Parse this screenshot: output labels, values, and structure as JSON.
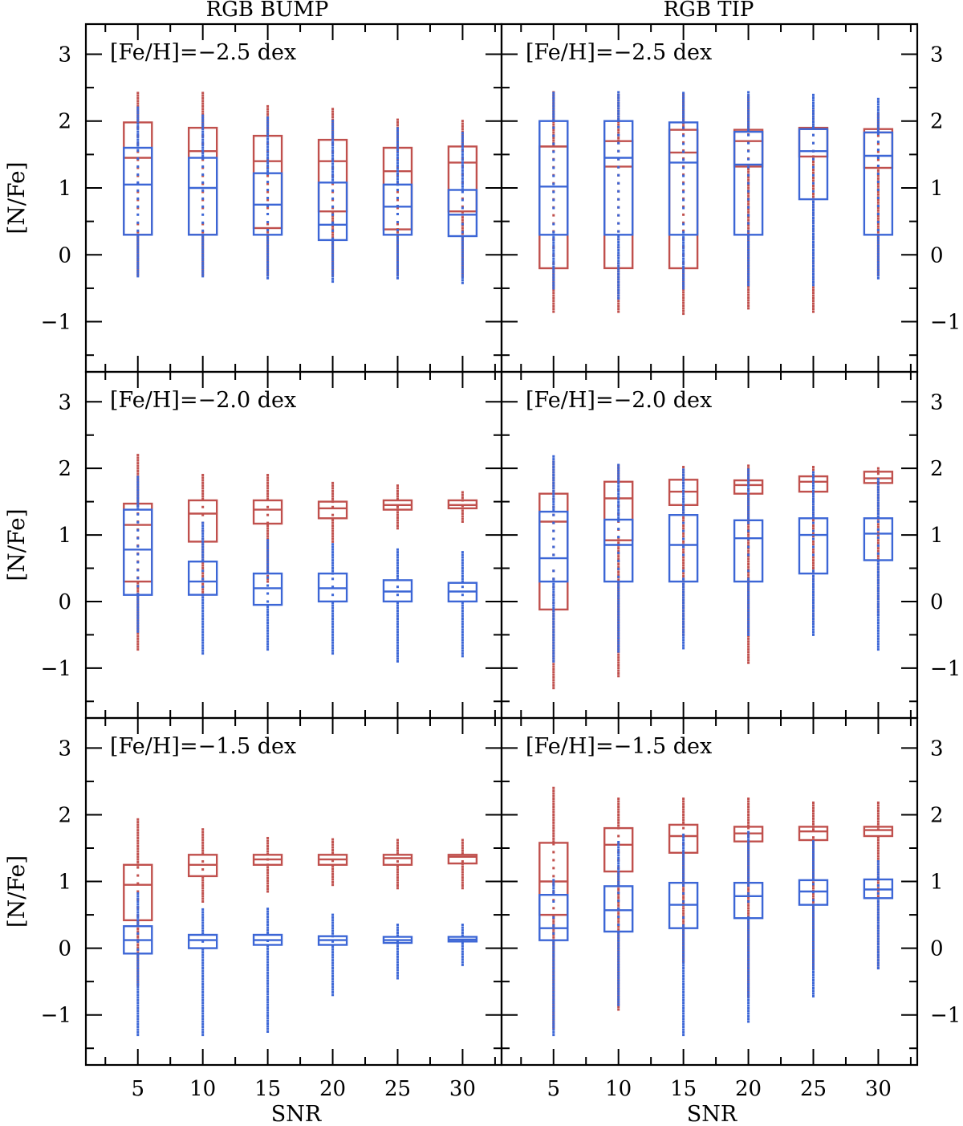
{
  "colors": {
    "red": "#c0504d",
    "blue": "#3c66d6",
    "axis": "#000000"
  },
  "chart_data": {
    "type": "box",
    "column_titles": [
      "RGB BUMP",
      "RGB TIP"
    ],
    "xlabel": "SNR",
    "ylabel": "[N/Fe]",
    "x": [
      5,
      10,
      15,
      20,
      25,
      30
    ],
    "xlim": [
      1,
      33
    ],
    "ylim": [
      -1.75,
      3.45
    ],
    "yticks": [
      -1,
      0,
      1,
      2,
      3
    ],
    "ytick_labels": [
      "−1",
      "0",
      "1",
      "2",
      "3"
    ],
    "xtick_labels": [
      "5",
      "10",
      "15",
      "20",
      "25",
      "30"
    ],
    "panels": [
      {
        "id": "bump-m25",
        "row": 0,
        "col": 0,
        "label": "[Fe/H]=−2.5 dex",
        "series": [
          {
            "name": "red",
            "boxes": [
              [
                0.3,
                1.45,
                1.98
              ],
              [
                0.3,
                1.55,
                1.9
              ],
              [
                0.4,
                1.4,
                1.78
              ],
              [
                0.65,
                1.4,
                1.72
              ],
              [
                0.38,
                1.25,
                1.6
              ],
              [
                0.65,
                1.38,
                1.62
              ]
            ],
            "whiskers": [
              [
                -0.3,
                2.45
              ],
              [
                -0.3,
                2.42
              ],
              [
                -0.3,
                2.25
              ],
              [
                -0.3,
                2.2
              ],
              [
                -0.3,
                2.05
              ],
              [
                -0.32,
                2.0
              ]
            ]
          },
          {
            "name": "blue",
            "boxes": [
              [
                0.3,
                1.05,
                1.6
              ],
              [
                0.3,
                1.0,
                1.45
              ],
              [
                0.3,
                0.75,
                1.22
              ],
              [
                0.22,
                0.45,
                1.08
              ],
              [
                0.3,
                0.72,
                1.05
              ],
              [
                0.28,
                0.6,
                0.97
              ]
            ],
            "whiskers": [
              [
                -0.32,
                2.2
              ],
              [
                -0.32,
                2.1
              ],
              [
                -0.35,
                2.05
              ],
              [
                -0.4,
                2.0
              ],
              [
                -0.35,
                1.9
              ],
              [
                -0.42,
                1.85
              ]
            ]
          }
        ]
      },
      {
        "id": "tip-m25",
        "row": 0,
        "col": 1,
        "label": "[Fe/H]=−2.5 dex",
        "series": [
          {
            "name": "red",
            "boxes": [
              [
                -0.2,
                1.62,
                1.62
              ],
              [
                -0.2,
                1.32,
                1.7
              ],
              [
                -0.2,
                1.53,
                1.87
              ],
              [
                1.32,
                1.7,
                1.87
              ],
              [
                1.47,
                1.88,
                1.9
              ],
              [
                1.3,
                1.83,
                1.88
              ]
            ],
            "whiskers": [
              [
                -0.85,
                2.45
              ],
              [
                -0.85,
                2.42
              ],
              [
                -0.88,
                2.4
              ],
              [
                -0.8,
                2.38
              ],
              [
                -0.85,
                2.2
              ],
              [
                -0.3,
                2.1
              ]
            ]
          },
          {
            "name": "blue",
            "boxes": [
              [
                0.3,
                1.02,
                2.0
              ],
              [
                0.3,
                1.45,
                2.0
              ],
              [
                0.3,
                1.38,
                1.98
              ],
              [
                0.3,
                1.35,
                1.84
              ],
              [
                0.83,
                1.55,
                1.88
              ],
              [
                0.3,
                1.48,
                1.83
              ]
            ],
            "whiskers": [
              [
                -0.5,
                2.45
              ],
              [
                -0.65,
                2.45
              ],
              [
                -0.5,
                2.45
              ],
              [
                -0.45,
                2.45
              ],
              [
                -0.45,
                2.42
              ],
              [
                -0.35,
                2.35
              ]
            ]
          }
        ]
      },
      {
        "id": "bump-m20",
        "row": 1,
        "col": 0,
        "label": "[Fe/H]=−2.0 dex",
        "series": [
          {
            "name": "red",
            "boxes": [
              [
                0.3,
                1.15,
                1.47
              ],
              [
                0.9,
                1.32,
                1.52
              ],
              [
                1.17,
                1.38,
                1.52
              ],
              [
                1.25,
                1.4,
                1.5
              ],
              [
                1.38,
                1.45,
                1.52
              ],
              [
                1.4,
                1.45,
                1.52
              ]
            ],
            "whiskers": [
              [
                -0.72,
                2.22
              ],
              [
                0.1,
                1.9
              ],
              [
                0.3,
                1.92
              ],
              [
                0.9,
                1.78
              ],
              [
                1.1,
                1.75
              ],
              [
                1.2,
                1.65
              ]
            ]
          },
          {
            "name": "blue",
            "boxes": [
              [
                0.1,
                0.78,
                1.38
              ],
              [
                0.1,
                0.3,
                0.6
              ],
              [
                -0.05,
                0.2,
                0.42
              ],
              [
                0.0,
                0.2,
                0.42
              ],
              [
                0.0,
                0.15,
                0.32
              ],
              [
                0.0,
                0.15,
                0.28
              ]
            ],
            "whiskers": [
              [
                -0.45,
                1.88
              ],
              [
                -0.78,
                1.2
              ],
              [
                -0.72,
                0.95
              ],
              [
                -0.78,
                0.88
              ],
              [
                -0.9,
                0.8
              ],
              [
                -0.82,
                0.75
              ]
            ]
          }
        ]
      },
      {
        "id": "tip-m20",
        "row": 1,
        "col": 1,
        "label": "[Fe/H]=−2.0 dex",
        "series": [
          {
            "name": "red",
            "boxes": [
              [
                -0.12,
                1.2,
                1.62
              ],
              [
                0.92,
                1.55,
                1.8
              ],
              [
                1.45,
                1.65,
                1.83
              ],
              [
                1.62,
                1.75,
                1.82
              ],
              [
                1.65,
                1.8,
                1.88
              ],
              [
                1.78,
                1.85,
                1.95
              ]
            ],
            "whiskers": [
              [
                -1.3,
                2.1
              ],
              [
                -1.12,
                2.05
              ],
              [
                -0.5,
                2.05
              ],
              [
                -0.92,
                2.05
              ],
              [
                -0.3,
                2.05
              ],
              [
                -0.2,
                2.0
              ]
            ]
          },
          {
            "name": "blue",
            "boxes": [
              [
                0.3,
                0.65,
                1.35
              ],
              [
                0.3,
                0.85,
                1.23
              ],
              [
                0.3,
                0.85,
                1.3
              ],
              [
                0.3,
                0.95,
                1.22
              ],
              [
                0.42,
                1.0,
                1.25
              ],
              [
                0.62,
                1.02,
                1.25
              ]
            ],
            "whiskers": [
              [
                -0.9,
                2.2
              ],
              [
                -0.75,
                2.05
              ],
              [
                -0.7,
                2.0
              ],
              [
                -0.5,
                2.0
              ],
              [
                -0.5,
                1.95
              ],
              [
                -0.72,
                1.85
              ]
            ]
          }
        ]
      },
      {
        "id": "bump-m15",
        "row": 2,
        "col": 0,
        "label": "[Fe/H]=−1.5 dex",
        "series": [
          {
            "name": "red",
            "boxes": [
              [
                0.42,
                0.95,
                1.25
              ],
              [
                1.08,
                1.25,
                1.4
              ],
              [
                1.25,
                1.33,
                1.4
              ],
              [
                1.25,
                1.33,
                1.4
              ],
              [
                1.25,
                1.35,
                1.4
              ],
              [
                1.27,
                1.37,
                1.4
              ]
            ],
            "whiskers": [
              [
                -0.55,
                1.95
              ],
              [
                0.7,
                1.78
              ],
              [
                0.85,
                1.65
              ],
              [
                0.95,
                1.65
              ],
              [
                0.9,
                1.62
              ],
              [
                0.9,
                1.62
              ]
            ]
          },
          {
            "name": "blue",
            "boxes": [
              [
                -0.08,
                0.12,
                0.33
              ],
              [
                0.0,
                0.12,
                0.2
              ],
              [
                0.05,
                0.12,
                0.2
              ],
              [
                0.05,
                0.12,
                0.18
              ],
              [
                0.08,
                0.12,
                0.17
              ],
              [
                0.1,
                0.13,
                0.17
              ]
            ],
            "whiskers": [
              [
                -1.3,
                0.85
              ],
              [
                -1.3,
                0.58
              ],
              [
                -1.25,
                0.6
              ],
              [
                -0.7,
                0.5
              ],
              [
                -0.45,
                0.38
              ],
              [
                -0.25,
                0.38
              ]
            ]
          }
        ]
      },
      {
        "id": "tip-m15",
        "row": 2,
        "col": 1,
        "label": "[Fe/H]=−1.5 dex",
        "series": [
          {
            "name": "red",
            "boxes": [
              [
                0.5,
                1.0,
                1.58
              ],
              [
                1.15,
                1.55,
                1.8
              ],
              [
                1.43,
                1.68,
                1.85
              ],
              [
                1.6,
                1.72,
                1.82
              ],
              [
                1.62,
                1.75,
                1.82
              ],
              [
                1.68,
                1.77,
                1.82
              ]
            ],
            "whiskers": [
              [
                -1.2,
                2.4
              ],
              [
                -0.92,
                2.25
              ],
              [
                -0.2,
                2.25
              ],
              [
                -0.72,
                2.25
              ],
              [
                -0.3,
                2.2
              ],
              [
                -0.3,
                2.2
              ]
            ]
          },
          {
            "name": "blue",
            "boxes": [
              [
                0.12,
                0.3,
                0.8
              ],
              [
                0.25,
                0.57,
                0.93
              ],
              [
                0.3,
                0.65,
                0.98
              ],
              [
                0.45,
                0.78,
                0.98
              ],
              [
                0.65,
                0.85,
                1.02
              ],
              [
                0.75,
                0.88,
                1.03
              ]
            ],
            "whiskers": [
              [
                -1.3,
                1.05
              ],
              [
                -0.85,
                1.6
              ],
              [
                -1.3,
                1.7
              ],
              [
                -1.1,
                1.75
              ],
              [
                -0.72,
                1.6
              ],
              [
                -0.3,
                1.3
              ]
            ]
          }
        ]
      }
    ]
  }
}
